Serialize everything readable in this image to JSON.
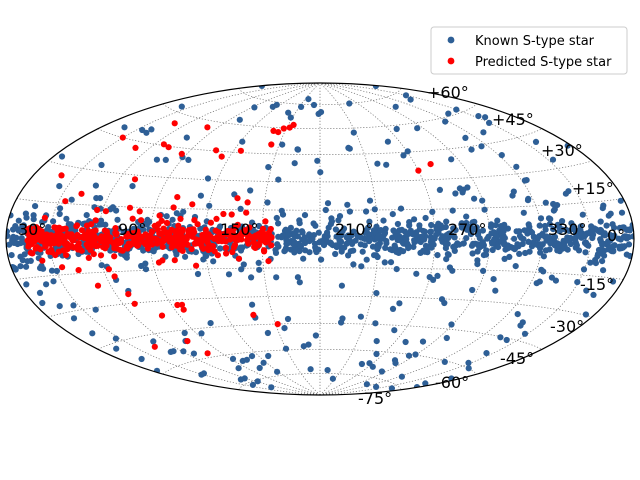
{
  "chart_data": {
    "type": "scatter",
    "projection": "hammer-aitoff",
    "title": "",
    "grid": true,
    "legend_placement": "top-right",
    "xticks": [
      "30°",
      "90°",
      "150°",
      "210°",
      "270°",
      "330°",
      "0°"
    ],
    "yticks": [
      "+60°",
      "+45°",
      "+30°",
      "+15°",
      "-15°",
      "-30°",
      "-45°",
      "-60°",
      "-75°"
    ],
    "series": [
      {
        "name": "Known S-type star",
        "color": "#2e5f96"
      },
      {
        "name": "Predicted S-type star",
        "color": "#ff0000"
      }
    ]
  }
}
